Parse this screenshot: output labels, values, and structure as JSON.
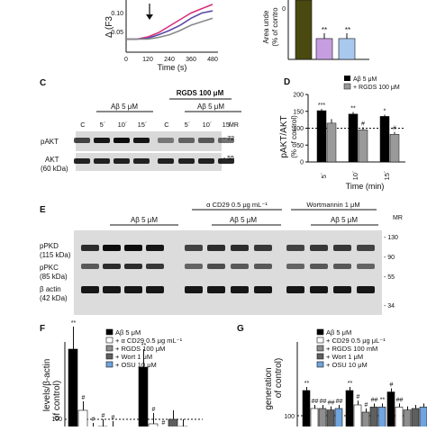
{
  "panelA": {
    "ylabel": "Δ (F3",
    "xlabel": "Time (s)",
    "xticks": [
      "0",
      "120",
      "240",
      "360",
      "480"
    ],
    "yticks": [
      "0.10",
      "0.05"
    ]
  },
  "panelB": {
    "ylabel": "Area unde",
    "ylabel2": "(% of contro",
    "markers": [
      "**",
      "**"
    ],
    "yticks": [
      "0",
      "0"
    ]
  },
  "panelC": {
    "label": "C",
    "rgds": "RGDS 100 μM",
    "abeta_left": "Aβ 5 μM",
    "abeta_right": "Aβ 5 μM",
    "lanes": [
      "C",
      "5´",
      "10´",
      "15´",
      "C",
      "5´",
      "10´",
      "15´"
    ],
    "mr": "MR",
    "rows": [
      "pAKT",
      "AKT",
      "(60 kDa)"
    ],
    "markers": [
      "- 72",
      "- 55"
    ]
  },
  "panelD": {
    "label": "D",
    "ylabel1": "pAKT/AKT",
    "ylabel2": "(% of control)",
    "xlabel": "Time (min)",
    "legend": [
      "Aβ 5 μM",
      "+ RGDS 100 μM"
    ],
    "yticks": [
      "0",
      "50",
      "100",
      "150",
      "200"
    ],
    "xticks": [
      "5´",
      "10´",
      "15´"
    ],
    "sig_black": [
      "***",
      "**",
      "*"
    ],
    "sig_gray": [
      "",
      "#",
      "#"
    ]
  },
  "panelE": {
    "label": "E",
    "cd29": "α CD29 0.5 μg mL⁻¹",
    "wortmannin": "Wortmannin 1 μM",
    "abeta": [
      "Aβ 5 μM",
      "Aβ 5 μM",
      "Aβ 5 μM"
    ],
    "lanes": [
      "C",
      "5´",
      "10´",
      "15´",
      "C",
      "5´",
      "10´",
      "15´",
      "C",
      "5´",
      "10´",
      "15´"
    ],
    "mr": "MR",
    "rows": [
      "pPKD",
      "(115 kDa)",
      "pPKC",
      "(85 kDa)",
      "β actin",
      "(42 kDa)"
    ],
    "markers": [
      "- 130",
      "- 90",
      "- 55",
      "- 34"
    ]
  },
  "panelF": {
    "label": "F",
    "ylabel1": "levels/β-actin",
    "ylabel2": "of control)",
    "legend": [
      "Aβ  5 μM",
      "+ α  CD29 0.5 μg mL⁻¹",
      "+ RGDS 100 μM",
      "+ Wort 1 μM",
      "+ OSU 10 μM"
    ],
    "ytick": "100",
    "markers": [
      "**",
      "#",
      "#",
      "#",
      "#",
      "**",
      "#",
      "#"
    ]
  },
  "panelG": {
    "label": "G",
    "ylabel1": "generation",
    "ylabel2": "of control)",
    "legend": [
      "Aβ 5 μM",
      "+ CD29 0.5 μg μL⁻¹",
      "+ RGDS 100 mM",
      "+ Wort 1 μM",
      "+ OSU 10 μM"
    ],
    "ytick": "100",
    "markers": [
      "**",
      "##",
      "##",
      "##",
      "##",
      "**",
      "#",
      "#",
      "##",
      "**",
      "#",
      "##"
    ]
  },
  "chart_data": [
    {
      "type": "line",
      "panel": "A",
      "x": [
        0,
        60,
        120,
        180,
        240,
        300,
        360,
        420,
        480
      ],
      "series": [
        {
          "name": "",
          "values": [
            0.03,
            0.03,
            0.035,
            0.045,
            0.06,
            0.075,
            0.09,
            0.1,
            0.11
          ],
          "color": "#d8327a"
        },
        {
          "name": "",
          "values": [
            0.03,
            0.03,
            0.032,
            0.04,
            0.05,
            0.062,
            0.078,
            0.09,
            0.095
          ],
          "color": "#5a4aa8"
        },
        {
          "name": "",
          "values": [
            0.03,
            0.03,
            0.03,
            0.034,
            0.04,
            0.05,
            0.062,
            0.07,
            0.078
          ],
          "color": "#8a8a8a"
        }
      ],
      "xlabel": "Time (s)",
      "xlim": [
        0,
        480
      ],
      "arrow_at": 120
    },
    {
      "type": "bar",
      "panel": "B",
      "categories": [
        "",
        "",
        ""
      ],
      "values": [
        100,
        35,
        35
      ],
      "colors": [
        "#4a4a10",
        "#c59de0",
        "#a9c8ee"
      ],
      "ylim": [
        0,
        100
      ]
    },
    {
      "type": "bar",
      "panel": "D",
      "categories": [
        "5´",
        "10´",
        "15´"
      ],
      "series": [
        {
          "name": "Aβ 5 μM",
          "values": [
            152,
            142,
            135
          ],
          "errors": [
            5,
            6,
            5
          ],
          "color": "#000000"
        },
        {
          "name": "+ RGDS 100 μM",
          "values": [
            115,
            95,
            82
          ],
          "errors": [
            12,
            8,
            7
          ],
          "color": "#9a9a9a"
        }
      ],
      "ylim": [
        0,
        200
      ],
      "reference_line": 100,
      "xlabel": "Time (min)",
      "ylabel": "pAKT/AKT (% of control)"
    },
    {
      "type": "bar",
      "panel": "F",
      "groups": 2,
      "series": [
        {
          "name": "Aβ  5 μM",
          "values": [
            178,
            158
          ],
          "errors": [
            25,
            20
          ],
          "color": "#000000"
        },
        {
          "name": "+ α  CD29 0.5 μg mL⁻¹",
          "values": [
            110,
            95
          ],
          "errors": [
            10,
            12
          ],
          "color": "#ffffff"
        },
        {
          "name": "+ RGDS 100 μM",
          "values": [
            88,
            84
          ],
          "errors": [
            8,
            8
          ],
          "color": "#8e8e8e"
        },
        {
          "name": "+ Wort 1 μM",
          "values": [
            92,
            100
          ],
          "errors": [
            8,
            10
          ],
          "color": "#5f5f5f"
        },
        {
          "name": "+ OSU 10 μM",
          "values": [
            90,
            92
          ],
          "errors": [
            8,
            8
          ],
          "color": "#6fa4dd"
        }
      ],
      "reference_line": 100
    },
    {
      "type": "bar",
      "panel": "G",
      "groups": 3,
      "series": [
        {
          "name": "Aβ 5 μM",
          "values": [
            135,
            135,
            133
          ],
          "errors": [
            5,
            5,
            5
          ],
          "color": "#000000"
        },
        {
          "name": "+ CD29 0.5 μg μL⁻¹",
          "values": [
            110,
            115,
            112
          ],
          "errors": [
            5,
            6,
            5
          ],
          "color": "#ffffff"
        },
        {
          "name": "+ RGDS 100 mM",
          "values": [
            110,
            105,
            108
          ],
          "errors": [
            5,
            5,
            5
          ],
          "color": "#8e8e8e"
        },
        {
          "name": "+ Wort 1 μM",
          "values": [
            108,
            112,
            110
          ],
          "errors": [
            5,
            5,
            5
          ],
          "color": "#5f5f5f"
        },
        {
          "name": "+ OSU 10 μM",
          "values": [
            110,
            112,
            112
          ],
          "errors": [
            5,
            5,
            5
          ],
          "color": "#6fa4dd"
        }
      ],
      "reference_line": 100
    }
  ]
}
